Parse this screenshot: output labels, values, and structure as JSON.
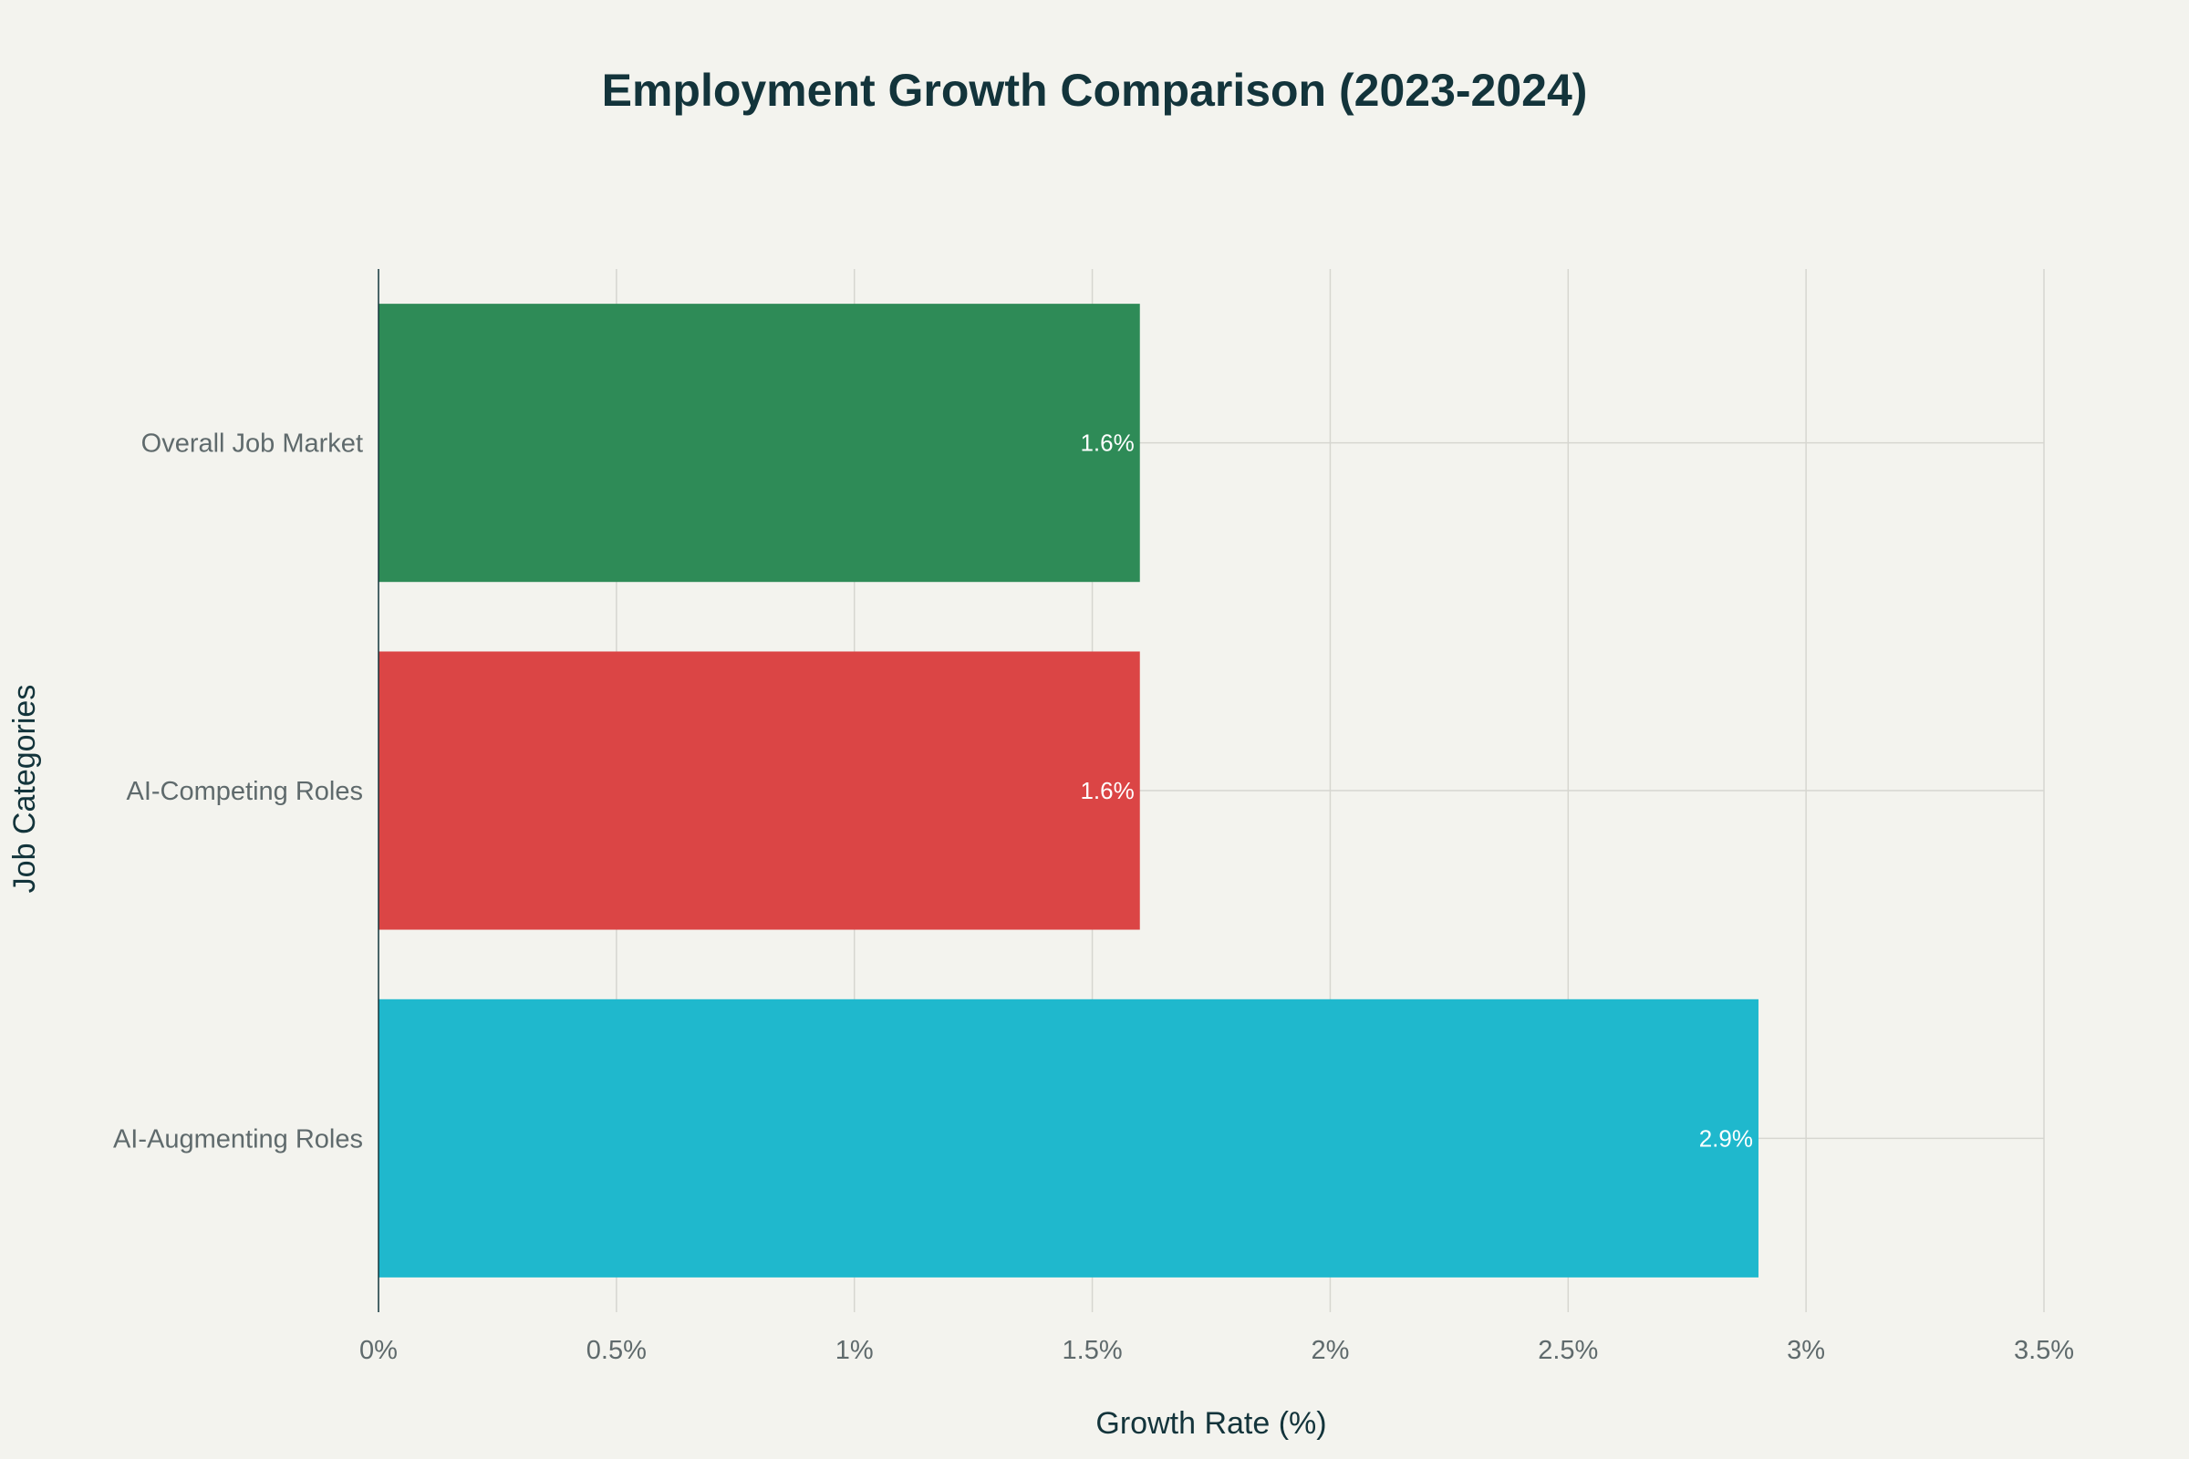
{
  "chart_data": {
    "type": "bar",
    "orientation": "horizontal",
    "title": "Employment Growth Comparison (2023-2024)",
    "xlabel": "Growth Rate (%)",
    "ylabel": "Job Categories",
    "categories": [
      "Overall Job Market",
      "AI-Competing Roles",
      "AI-Augmenting Roles"
    ],
    "values": [
      1.6,
      1.6,
      2.9
    ],
    "value_labels": [
      "1.6%",
      "1.6%",
      "2.9%"
    ],
    "colors": [
      "#2e8b57",
      "#db4545",
      "#1fb8cd"
    ],
    "xlim": [
      0,
      3.5
    ],
    "xticks": [
      0,
      0.5,
      1,
      1.5,
      2,
      2.5,
      3,
      3.5
    ],
    "xtick_labels": [
      "0%",
      "0.5%",
      "1%",
      "1.5%",
      "2%",
      "2.5%",
      "3%",
      "3.5%"
    ],
    "grid": true,
    "legend": "none"
  }
}
